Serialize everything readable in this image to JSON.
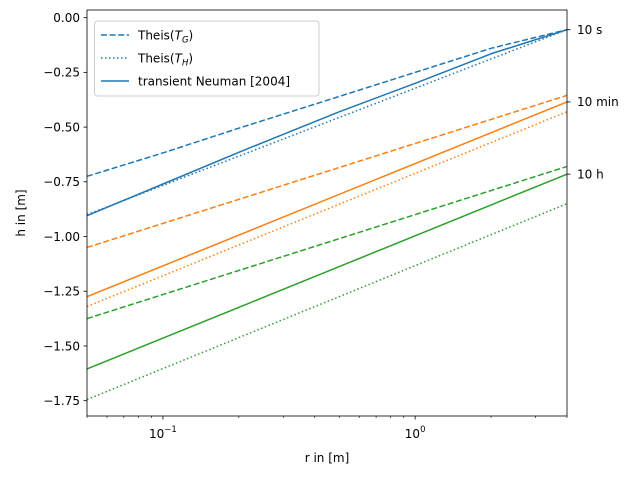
{
  "chart_data": {
    "type": "line",
    "xlabel": "r in [m]",
    "ylabel": "h in [m]",
    "xscale": "log",
    "xlim": [
      0.05,
      4.0
    ],
    "ylim": [
      -1.82,
      0.035
    ],
    "yticks": [
      0.0,
      -0.25,
      -0.5,
      -0.75,
      -1.0,
      -1.25,
      -1.5,
      -1.75
    ],
    "ytick_labels": [
      "0.00",
      "−0.25",
      "−0.50",
      "−0.75",
      "−1.00",
      "−1.25",
      "−1.50",
      "−1.75"
    ],
    "xtick_major": [
      0.1,
      1.0
    ],
    "xtick_major_base": [
      "10",
      "10"
    ],
    "xtick_major_exp": [
      "−1",
      "0"
    ],
    "grid": false,
    "legend_position": "upper left",
    "legend": [
      {
        "label_prefix": "Theis(",
        "label_sym": "T",
        "label_sub": "G",
        "label_suffix": ")",
        "style": "dashed"
      },
      {
        "label_prefix": "Theis(",
        "label_sym": "T",
        "label_sub": "H",
        "label_suffix": ")",
        "style": "dotted"
      },
      {
        "label": "transient Neuman [2004]",
        "style": "solid"
      }
    ],
    "time_labels": [
      "10 s",
      "10 min",
      "10 h"
    ],
    "time_label_y": [
      -0.055,
      -0.385,
      -0.715
    ],
    "colors": {
      "10 s": "#1f77b4",
      "10 min": "#ff7f0e",
      "10 h": "#2ca02c"
    },
    "series": [
      {
        "name": "Theis(T_G)",
        "time": "10 s",
        "style": "dashed",
        "x": [
          0.05,
          0.1,
          0.2,
          0.5,
          1.0,
          2.0,
          4.0
        ],
        "y": [
          -0.725,
          -0.618,
          -0.505,
          -0.36,
          -0.25,
          -0.14,
          -0.055
        ]
      },
      {
        "name": "Theis(T_H)",
        "time": "10 s",
        "style": "dotted",
        "x": [
          0.05,
          4.0
        ],
        "y": [
          -0.9,
          -0.055
        ]
      },
      {
        "name": "transient Neuman [2004]",
        "time": "10 s",
        "style": "solid",
        "x": [
          0.05,
          0.1,
          0.2,
          0.5,
          1.0,
          2.0,
          4.0
        ],
        "y": [
          -0.905,
          -0.76,
          -0.615,
          -0.43,
          -0.3,
          -0.165,
          -0.055
        ]
      },
      {
        "name": "Theis(T_G)",
        "time": "10 min",
        "style": "dashed",
        "x": [
          0.05,
          4.0
        ],
        "y": [
          -1.05,
          -0.355
        ]
      },
      {
        "name": "Theis(T_H)",
        "time": "10 min",
        "style": "dotted",
        "x": [
          0.05,
          4.0
        ],
        "y": [
          -1.32,
          -0.43
        ]
      },
      {
        "name": "transient Neuman [2004]",
        "time": "10 min",
        "style": "solid",
        "x": [
          0.05,
          4.0
        ],
        "y": [
          -1.275,
          -0.385
        ]
      },
      {
        "name": "Theis(T_G)",
        "time": "10 h",
        "style": "dashed",
        "x": [
          0.05,
          4.0
        ],
        "y": [
          -1.375,
          -0.68
        ]
      },
      {
        "name": "Theis(T_H)",
        "time": "10 h",
        "style": "dotted",
        "x": [
          0.05,
          4.0
        ],
        "y": [
          -1.745,
          -0.85
        ]
      },
      {
        "name": "transient Neuman [2004]",
        "time": "10 h",
        "style": "solid",
        "x": [
          0.05,
          4.0
        ],
        "y": [
          -1.605,
          -0.715
        ]
      }
    ]
  }
}
